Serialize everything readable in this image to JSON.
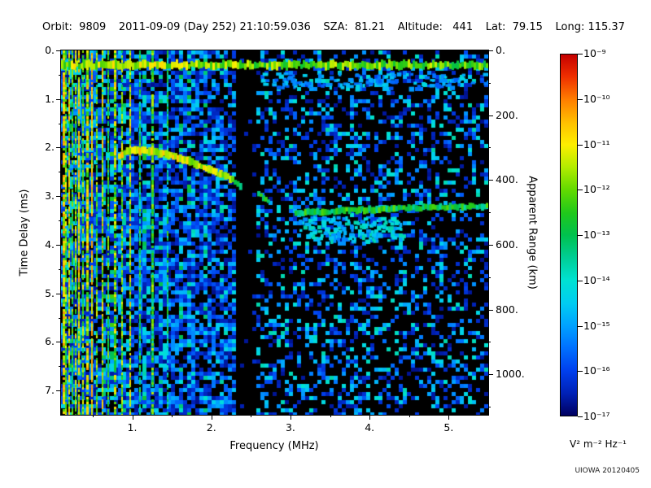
{
  "header": {
    "items": [
      "Orbit:  9809",
      "2011-09-09 (Day 252) 21:10:59.036",
      "SZA:  81.21",
      "Altitude:   441",
      "Lat:  79.15",
      "Long: 115.37"
    ]
  },
  "watermark": "UIOWA 20120405",
  "chart_data": {
    "type": "heatmap",
    "description": "Radar sounder ionogram: received spectral density (V^2 m^-2 Hz^-1, log color scale 1e-17 to 1e-9) versus sounding frequency (MHz) and echo time delay (ms). Dense blue noise speckle with bright vertical striations below ~1.3 MHz, a horizontal surface/local band near 0.3 ms across all frequencies, an ionospheric cusp trace from ~(0.85 MHz, 2.1 ms) sloping down to ~(2.35 MHz, 2.8 ms), a black interference-free vertical gap near 2.33-2.58 MHz, and a nearly horizontal ionospheric echo at ~3.2-3.35 ms from 3.05 to 5.5 MHz.",
    "xlabel": "Frequency (MHz)",
    "ylabel": "Time Delay (ms)",
    "y2label": "Apparent Range (km)",
    "colorbar_label": "V² m⁻² Hz⁻¹",
    "xlim": [
      0.1,
      5.5
    ],
    "ylim": [
      0.0,
      7.5
    ],
    "y2lim": [
      0,
      1125
    ],
    "xticks": [
      {
        "v": 1,
        "label": "1."
      },
      {
        "v": 2,
        "label": "2."
      },
      {
        "v": 3,
        "label": "3."
      },
      {
        "v": 4,
        "label": "4."
      },
      {
        "v": 5,
        "label": "5."
      }
    ],
    "yticks": [
      {
        "v": 0,
        "label": "0."
      },
      {
        "v": 1,
        "label": "1."
      },
      {
        "v": 2,
        "label": "2."
      },
      {
        "v": 3,
        "label": "3."
      },
      {
        "v": 4,
        "label": "4."
      },
      {
        "v": 5,
        "label": "5."
      },
      {
        "v": 6,
        "label": "6."
      },
      {
        "v": 7,
        "label": "7."
      }
    ],
    "y2ticks": [
      {
        "v": 0,
        "label": "0."
      },
      {
        "v": 200,
        "label": "200."
      },
      {
        "v": 400,
        "label": "400."
      },
      {
        "v": 600,
        "label": "600."
      },
      {
        "v": 800,
        "label": "800."
      },
      {
        "v": 1000,
        "label": "1000."
      }
    ],
    "colorbar": {
      "ticks": [
        "10⁻⁹",
        "10⁻¹⁰",
        "10⁻¹¹",
        "10⁻¹²",
        "10⁻¹³",
        "10⁻¹⁴",
        "10⁻¹⁵",
        "10⁻¹⁶",
        "10⁻¹⁷"
      ],
      "stops": [
        {
          "p": 0.0,
          "c": "#c40000"
        },
        {
          "p": 0.06,
          "c": "#ee2e00"
        },
        {
          "p": 0.125,
          "c": "#ff7e00"
        },
        {
          "p": 0.19,
          "c": "#ffc100"
        },
        {
          "p": 0.25,
          "c": "#fdee00"
        },
        {
          "p": 0.31,
          "c": "#b5ec00"
        },
        {
          "p": 0.375,
          "c": "#62da00"
        },
        {
          "p": 0.44,
          "c": "#1fc81c"
        },
        {
          "p": 0.5,
          "c": "#00c14e"
        },
        {
          "p": 0.56,
          "c": "#00cd92"
        },
        {
          "p": 0.625,
          "c": "#00e2d2"
        },
        {
          "p": 0.69,
          "c": "#00ccf2"
        },
        {
          "p": 0.75,
          "c": "#00a2ff"
        },
        {
          "p": 0.81,
          "c": "#0072ff"
        },
        {
          "p": 0.875,
          "c": "#0040ee"
        },
        {
          "p": 0.94,
          "c": "#0020b4"
        },
        {
          "p": 1.0,
          "c": "#000060"
        }
      ]
    },
    "features": {
      "black_gap_mhz": [
        2.33,
        2.58
      ],
      "surface_band": {
        "ms": 0.3,
        "v": 0.62
      },
      "vertical_lines": [
        {
          "f": 0.13,
          "v": 0.75
        },
        {
          "f": 0.16,
          "v": 0.6
        },
        {
          "f": 0.2,
          "v": 0.7
        },
        {
          "f": 0.24,
          "v": 0.55
        },
        {
          "f": 0.28,
          "v": 0.65
        },
        {
          "f": 0.33,
          "v": 0.75
        },
        {
          "f": 0.38,
          "v": 0.6
        },
        {
          "f": 0.43,
          "v": 0.7
        },
        {
          "f": 0.49,
          "v": 0.8
        },
        {
          "f": 0.55,
          "v": 0.6
        },
        {
          "f": 0.62,
          "v": 0.7
        },
        {
          "f": 0.7,
          "v": 0.55
        },
        {
          "f": 0.78,
          "v": 0.65
        },
        {
          "f": 0.87,
          "v": 0.6
        },
        {
          "f": 0.97,
          "v": 0.7
        },
        {
          "f": 1.1,
          "v": 0.5
        },
        {
          "f": 1.25,
          "v": 0.55
        },
        {
          "f": 1.45,
          "v": 0.45
        }
      ],
      "traces": [
        {
          "name": "ionosphere-cusp",
          "v": 0.72,
          "thickness": 6,
          "points": [
            [
              0.82,
              2.2
            ],
            [
              0.92,
              2.08
            ],
            [
              1.05,
              2.05
            ],
            [
              1.2,
              2.08
            ],
            [
              1.35,
              2.12
            ],
            [
              1.5,
              2.18
            ],
            [
              1.65,
              2.25
            ],
            [
              1.8,
              2.35
            ],
            [
              1.95,
              2.45
            ],
            [
              2.1,
              2.55
            ],
            [
              2.25,
              2.65
            ]
          ]
        },
        {
          "name": "cusp-tail",
          "v": 0.55,
          "thickness": 5,
          "points": [
            [
              2.25,
              2.65
            ],
            [
              2.35,
              2.8
            ]
          ]
        },
        {
          "name": "post-gap-segment",
          "v": 0.5,
          "thickness": 4,
          "points": [
            [
              2.58,
              2.95
            ],
            [
              2.7,
              3.1
            ]
          ]
        },
        {
          "name": "ionosphere-echo",
          "v": 0.52,
          "thickness": 5,
          "points": [
            [
              3.05,
              3.35
            ],
            [
              3.6,
              3.3
            ],
            [
              4.2,
              3.26
            ],
            [
              5.0,
              3.22
            ],
            [
              5.5,
              3.2
            ]
          ]
        }
      ],
      "diffuse_regions": [
        {
          "f": [
            3.1,
            4.4
          ],
          "ms": [
            3.4,
            3.9
          ],
          "v": [
            0.2,
            0.42
          ],
          "count": 140
        },
        {
          "f": [
            2.6,
            5.5
          ],
          "ms": [
            0.45,
            0.75
          ],
          "v": [
            0.15,
            0.35
          ],
          "count": 120
        }
      ]
    }
  }
}
